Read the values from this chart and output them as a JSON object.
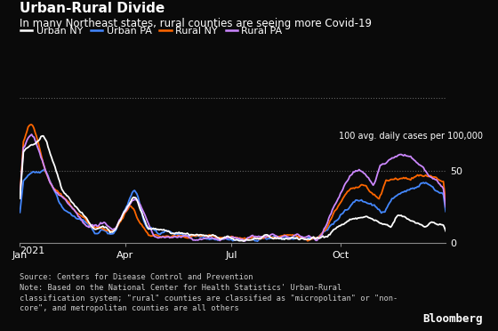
{
  "title": "Urban-Rural Divide",
  "subtitle": "In many Northeast states, rural counties are seeing more Covid-19",
  "ylabel": "100 avg. daily cases per 100,000",
  "source_text": "Source: Centers for Disease Control and Prevention\nNote: Based on the National Center for Health Statistics' Urban-Rural\nclassification system; \"rural\" counties are classified as \"micropolitan\" or \"non-\ncore\", and metropolitan counties are all others",
  "bloomberg_text": "Bloomberg",
  "bg_color": "#0a0a0a",
  "text_color": "#ffffff",
  "note_color": "#cccccc",
  "grid_color": "#444444",
  "colors": {
    "urban_ny": "#ffffff",
    "urban_pa": "#4488ff",
    "rural_ny": "#ff6600",
    "rural_pa": "#cc88ff"
  },
  "legend_labels": [
    "Urban NY",
    "Urban PA",
    "Rural NY",
    "Rural PA"
  ],
  "x_tick_labels": [
    "Jan",
    "Apr",
    "Jul",
    "Oct"
  ],
  "ylim": [
    0,
    100
  ],
  "yticks": [
    0,
    50,
    100
  ]
}
